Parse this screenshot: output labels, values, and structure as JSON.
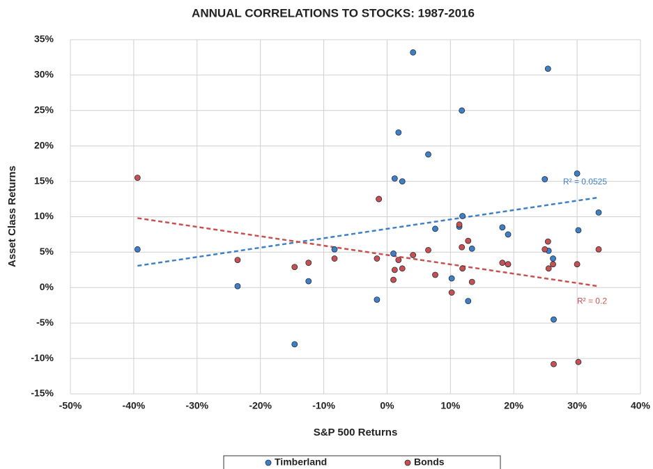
{
  "chart_data": {
    "type": "scatter",
    "title": "ANNUAL CORRELATIONS TO STOCKS: 1987-2016",
    "x_label": "S&P 500 Returns",
    "y_label": "Asset Class  Returns",
    "x": [
      -39.4,
      -23.6,
      -14.6,
      -12.4,
      -8.3,
      -1.6,
      -1.3,
      1.0,
      1.2,
      1.8,
      2.4,
      4.1,
      6.5,
      7.6,
      10.2,
      11.4,
      11.8,
      11.9,
      12.8,
      13.4,
      18.2,
      19.1,
      24.9,
      25.4,
      25.5,
      26.2,
      26.3,
      30.0,
      30.2,
      33.4
    ],
    "series": [
      {
        "name": "Timberland",
        "color": "#3f7fc6",
        "trendline_label": "R² = 0.0525",
        "values": [
          5.4,
          0.2,
          -8.0,
          0.9,
          5.4,
          -1.7,
          12.5,
          4.8,
          15.4,
          21.9,
          15.0,
          33.2,
          18.8,
          8.3,
          1.3,
          8.6,
          25.0,
          10.1,
          -1.9,
          5.5,
          8.5,
          7.5,
          15.3,
          30.9,
          5.2,
          4.1,
          -4.5,
          16.1,
          8.1,
          10.6
        ]
      },
      {
        "name": "Bonds",
        "color": "#c9504f",
        "trendline_label": "R² = 0.2",
        "values": [
          15.5,
          3.9,
          2.9,
          3.5,
          4.1,
          4.1,
          12.5,
          1.1,
          2.5,
          3.9,
          2.7,
          4.6,
          5.3,
          1.8,
          -0.7,
          8.9,
          5.7,
          2.7,
          6.6,
          0.8,
          3.5,
          3.3,
          5.4,
          6.5,
          2.7,
          3.3,
          -10.8,
          3.3,
          -10.5,
          5.4
        ]
      }
    ],
    "xlim": [
      -50,
      40
    ],
    "ylim": [
      -15,
      35
    ],
    "xticks": [
      {
        "value": -50,
        "label": "-50%"
      },
      {
        "value": -40,
        "label": "-40%"
      },
      {
        "value": -30,
        "label": "-30%"
      },
      {
        "value": -20,
        "label": "-20%"
      },
      {
        "value": -10,
        "label": "-10%"
      },
      {
        "value": 0,
        "label": "0%"
      },
      {
        "value": 10,
        "label": "10%"
      },
      {
        "value": 20,
        "label": "20%"
      },
      {
        "value": 30,
        "label": "30%"
      },
      {
        "value": 40,
        "label": "40%"
      }
    ],
    "yticks": [
      {
        "value": -15,
        "label": "-15%"
      },
      {
        "value": -10,
        "label": "-10%"
      },
      {
        "value": -5,
        "label": "-5%"
      },
      {
        "value": 0,
        "label": "0%"
      },
      {
        "value": 5,
        "label": "5%"
      },
      {
        "value": 10,
        "label": "10%"
      },
      {
        "value": 15,
        "label": "15%"
      },
      {
        "value": 20,
        "label": "20%"
      },
      {
        "value": 25,
        "label": "25%"
      },
      {
        "value": 30,
        "label": "30%"
      },
      {
        "value": 35,
        "label": "35%"
      }
    ],
    "grid": true,
    "trendlines": true,
    "legend": "bottom"
  }
}
